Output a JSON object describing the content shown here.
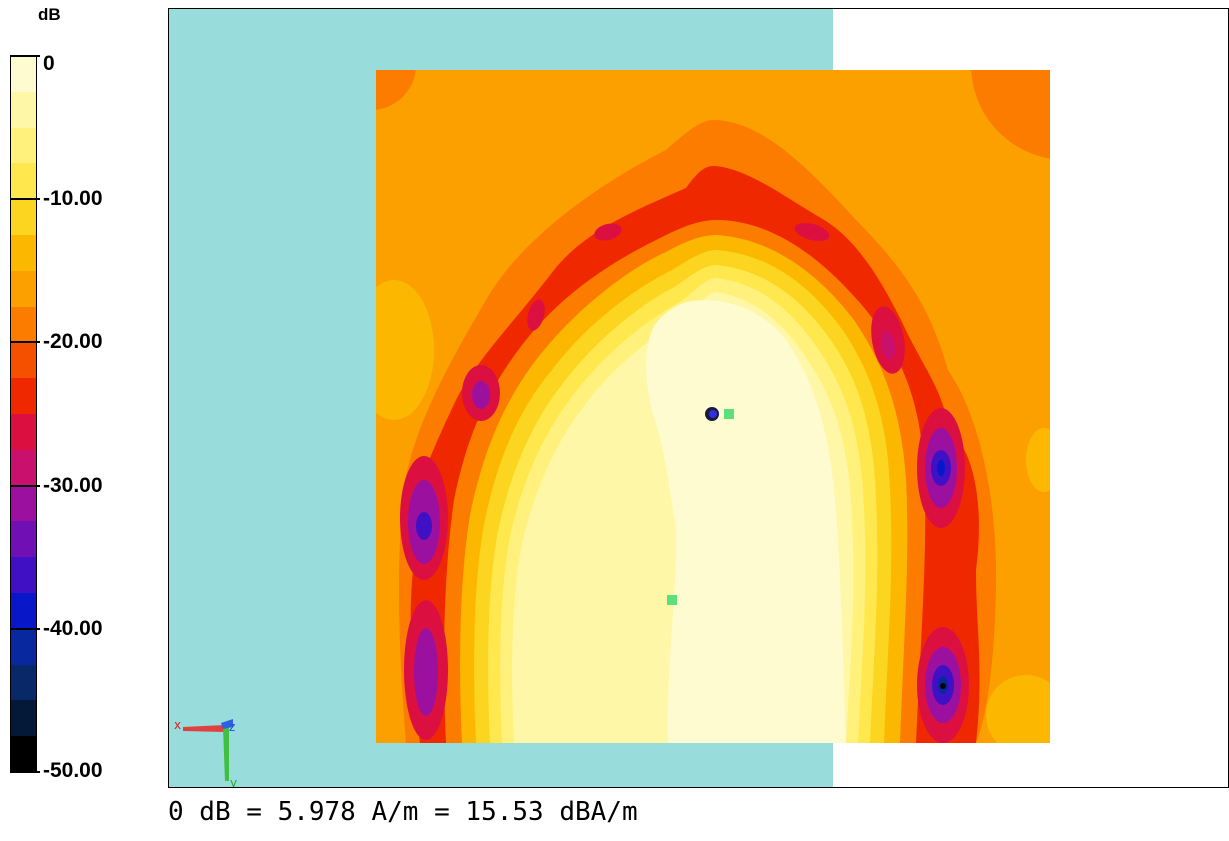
{
  "legend": {
    "unit": "dB",
    "ticks": [
      "0",
      "-10.00",
      "-20.00",
      "-30.00",
      "-40.00",
      "-50.00"
    ],
    "colors": [
      "#fffbd0",
      "#fff7a8",
      "#fff17c",
      "#ffe84e",
      "#fcd520",
      "#fcb800",
      "#fca000",
      "#fc7c00",
      "#f45000",
      "#f02800",
      "#dc1040",
      "#c8106c",
      "#9c10a0",
      "#7010b4",
      "#4010c4",
      "#0818c8",
      "#0828a0",
      "#082868",
      "#041838",
      "#000000"
    ]
  },
  "footer": {
    "reference": "0 dB = 5.978 A/m = 15.53 dBA/m"
  },
  "axes": {
    "x": "x",
    "y": "y",
    "z": "z"
  },
  "chart_data": {
    "type": "heatmap",
    "title": "",
    "colorbar_label": "dB",
    "colorbar_range": [
      -50,
      0
    ],
    "colorbar_ticks": [
      0,
      -10,
      -20,
      -30,
      -40,
      -50
    ],
    "reference": {
      "dB": 0,
      "A_per_m": 5.978,
      "dBA_per_m": 15.53
    },
    "note": "Magnetic field distribution map; peak (0 dB) region near the centre, nulls (about -40 to -50 dB) along the left and right edges of the ring."
  }
}
